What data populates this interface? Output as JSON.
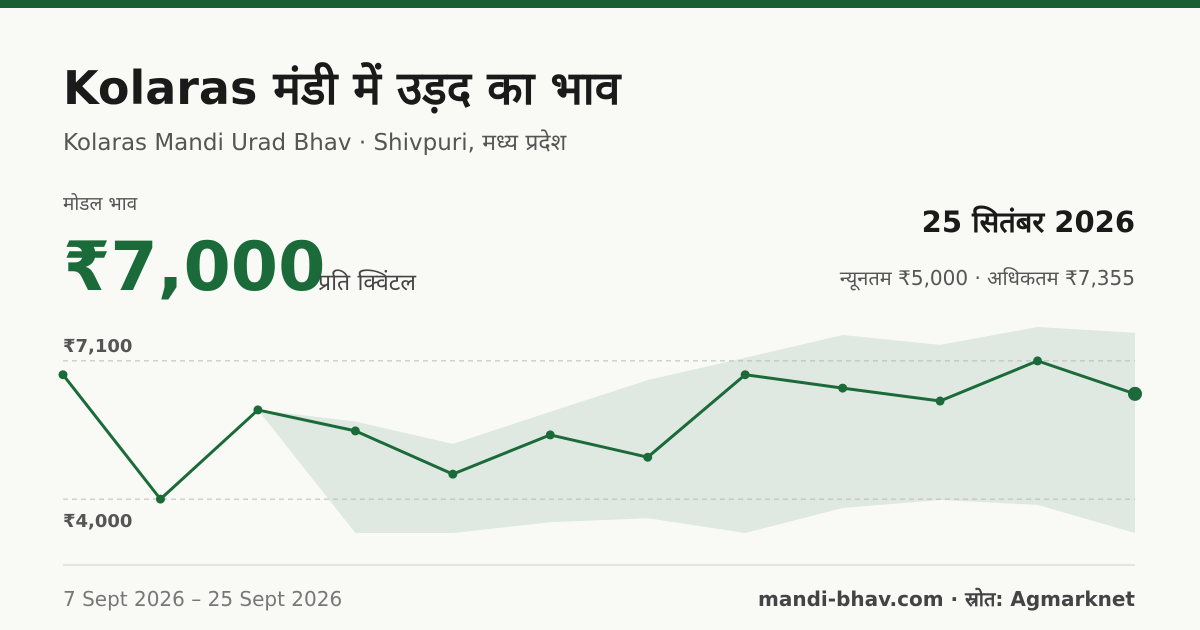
{
  "header": {
    "title": "Kolaras मंडी में उड़द का भाव",
    "subtitle": "Kolaras Mandi Urad Bhav · Shivpuri, मध्य प्रदेश"
  },
  "summary": {
    "label": "मोडल भाव",
    "price": "₹7,000",
    "unit": "प्रति क्विंटल",
    "date": "25 सितंबर 2026",
    "range": "न्यूनतम ₹5,000 · अधिकतम ₹7,355"
  },
  "chart_data": {
    "type": "line",
    "categories": [
      null,
      null,
      null,
      null,
      null,
      null,
      null,
      null,
      null,
      null,
      null,
      null
    ],
    "values": [
      6790,
      4000,
      6000,
      5530,
      4560,
      5440,
      4940,
      6790,
      6490,
      6200,
      7100,
      6360
    ],
    "color": "#1b6b3a",
    "band": {
      "color": "#dfe9e1",
      "upper": [
        null,
        null,
        6000,
        5740,
        5240,
        5960,
        6670,
        7170,
        7680,
        7460,
        7860,
        7730
      ],
      "lower": [
        null,
        null,
        6000,
        3240,
        3240,
        3480,
        3570,
        3240,
        3800,
        3980,
        3870,
        3240
      ]
    },
    "ylim": [
      3240,
      7860
    ],
    "yticks": [
      {
        "value": 7100,
        "label": "₹7,100"
      },
      {
        "value": 4000,
        "label": "₹4,000"
      }
    ],
    "grid": true
  },
  "footer": {
    "period": "7 Sept 2026 – 25 Sept 2026",
    "source": "mandi-bhav.com · स्रोत: Agmarknet"
  }
}
